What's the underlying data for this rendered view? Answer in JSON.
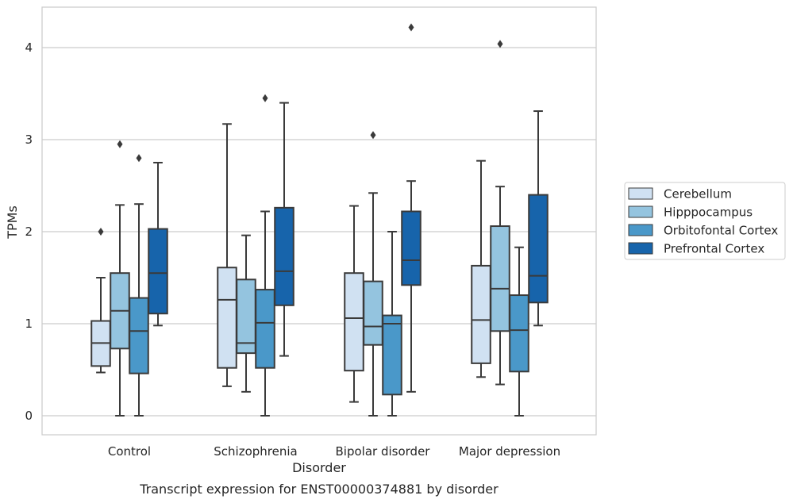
{
  "chart_data": {
    "type": "boxplot",
    "title": "Transcript expression for ENST00000374881 by disorder",
    "xlabel": "Disorder",
    "ylabel": "TPMs",
    "ylim": [
      -0.2,
      4.45
    ],
    "yticks": [
      0,
      1,
      2,
      3,
      4
    ],
    "grid": "horizontal",
    "legend_position": "right",
    "categories": [
      "Control",
      "Schizophrenia",
      "Bipolar disorder",
      "Major depression"
    ],
    "series": [
      {
        "name": "Cerebellum",
        "color": "#d0e1f2",
        "boxes": [
          {
            "whisker_low": 0.47,
            "q1": 0.54,
            "median": 0.79,
            "q3": 1.03,
            "whisker_high": 1.5,
            "outliers": [
              2.0
            ]
          },
          {
            "whisker_low": 0.32,
            "q1": 0.52,
            "median": 1.26,
            "q3": 1.61,
            "whisker_high": 3.17,
            "outliers": []
          },
          {
            "whisker_low": 0.15,
            "q1": 0.49,
            "median": 1.06,
            "q3": 1.55,
            "whisker_high": 2.28,
            "outliers": []
          },
          {
            "whisker_low": 0.42,
            "q1": 0.57,
            "median": 1.04,
            "q3": 1.63,
            "whisker_high": 2.77,
            "outliers": []
          }
        ]
      },
      {
        "name": "Hipppocampus",
        "color": "#94c4df",
        "boxes": [
          {
            "whisker_low": 0.0,
            "q1": 0.73,
            "median": 1.14,
            "q3": 1.55,
            "whisker_high": 2.29,
            "outliers": [
              2.95
            ]
          },
          {
            "whisker_low": 0.26,
            "q1": 0.68,
            "median": 0.79,
            "q3": 1.48,
            "whisker_high": 1.96,
            "outliers": []
          },
          {
            "whisker_low": 0.0,
            "q1": 0.77,
            "median": 0.97,
            "q3": 1.46,
            "whisker_high": 2.42,
            "outliers": [
              3.05
            ]
          },
          {
            "whisker_low": 0.34,
            "q1": 0.92,
            "median": 1.38,
            "q3": 2.06,
            "whisker_high": 2.49,
            "outliers": [
              4.04
            ]
          }
        ]
      },
      {
        "name": "Orbitofontal Cortex",
        "color": "#4a98c9",
        "boxes": [
          {
            "whisker_low": 0.0,
            "q1": 0.46,
            "median": 0.92,
            "q3": 1.28,
            "whisker_high": 2.3,
            "outliers": [
              2.8
            ]
          },
          {
            "whisker_low": 0.0,
            "q1": 0.52,
            "median": 1.01,
            "q3": 1.37,
            "whisker_high": 2.22,
            "outliers": [
              3.45
            ]
          },
          {
            "whisker_low": 0.0,
            "q1": 0.23,
            "median": 1.0,
            "q3": 1.09,
            "whisker_high": 2.0,
            "outliers": []
          },
          {
            "whisker_low": 0.0,
            "q1": 0.48,
            "median": 0.93,
            "q3": 1.31,
            "whisker_high": 1.83,
            "outliers": []
          }
        ]
      },
      {
        "name": "Prefrontal Cortex",
        "color": "#1764ab",
        "boxes": [
          {
            "whisker_low": 0.98,
            "q1": 1.11,
            "median": 1.55,
            "q3": 2.03,
            "whisker_high": 2.75,
            "outliers": []
          },
          {
            "whisker_low": 0.65,
            "q1": 1.2,
            "median": 1.57,
            "q3": 2.26,
            "whisker_high": 3.4,
            "outliers": []
          },
          {
            "whisker_low": 0.26,
            "q1": 1.42,
            "median": 1.69,
            "q3": 2.22,
            "whisker_high": 2.55,
            "outliers": [
              4.22
            ]
          },
          {
            "whisker_low": 0.98,
            "q1": 1.23,
            "median": 1.52,
            "q3": 2.4,
            "whisker_high": 3.31,
            "outliers": []
          }
        ]
      }
    ]
  }
}
